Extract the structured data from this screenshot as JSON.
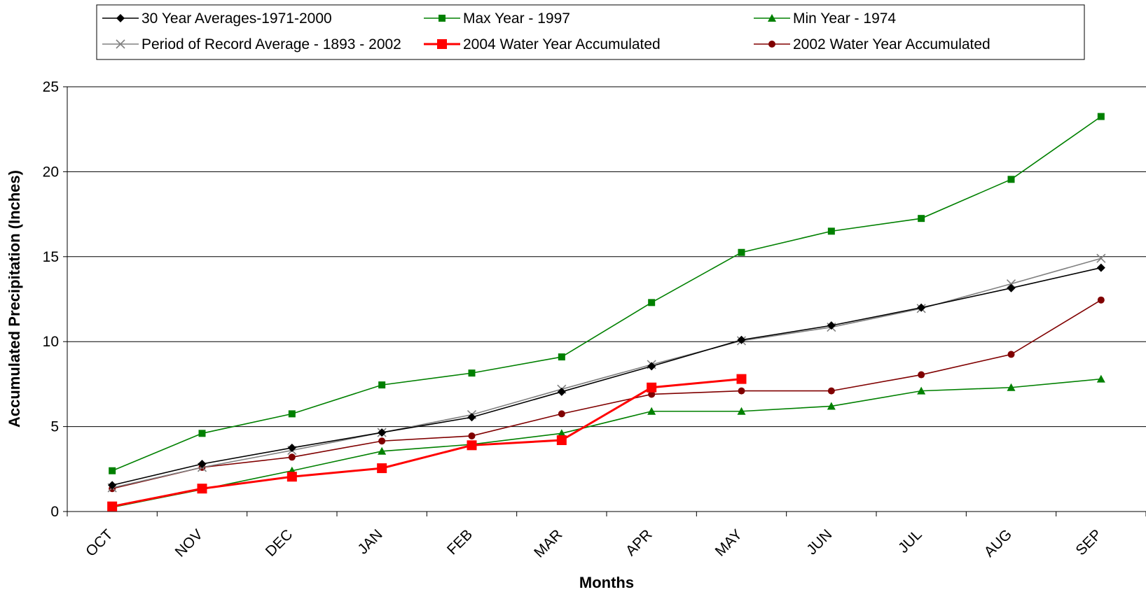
{
  "chart_data": {
    "type": "line",
    "title": "",
    "xlabel": "Months",
    "ylabel": "Accumulated Precipitation (Inches)",
    "ylim": [
      0,
      25
    ],
    "yticks": [
      0,
      5,
      10,
      15,
      20,
      25
    ],
    "grid": "horizontal",
    "legend_position": "top",
    "categories": [
      "OCT",
      "NOV",
      "DEC",
      "JAN",
      "FEB",
      "MAR",
      "APR",
      "MAY",
      "JUN",
      "JUL",
      "AUG",
      "SEP"
    ],
    "series": [
      {
        "name": "30 Year Averages-1971-2000",
        "color": "#000000",
        "marker": "diamond",
        "values": [
          1.55,
          2.8,
          3.75,
          4.65,
          5.55,
          7.05,
          8.55,
          10.1,
          10.95,
          12.0,
          13.15,
          14.35
        ]
      },
      {
        "name": "Max Year - 1997",
        "color": "#008000",
        "marker": "square",
        "values": [
          2.4,
          4.6,
          5.75,
          7.45,
          8.15,
          9.1,
          12.3,
          15.25,
          16.5,
          17.25,
          19.55,
          23.25
        ]
      },
      {
        "name": "Min Year - 1974",
        "color": "#008000",
        "marker": "triangle",
        "values": [
          0.25,
          1.3,
          2.4,
          3.55,
          3.95,
          4.6,
          5.9,
          5.9,
          6.2,
          7.1,
          7.3,
          7.8
        ]
      },
      {
        "name": "Period of Record Average - 1893 - 2002",
        "color": "#808080",
        "marker": "x",
        "values": [
          1.4,
          2.6,
          3.6,
          4.65,
          5.7,
          7.2,
          8.65,
          10.05,
          10.85,
          11.95,
          13.4,
          14.9
        ]
      },
      {
        "name": "2004 Water Year Accumulated",
        "color": "#ff0000",
        "marker": "square-big",
        "values": [
          0.3,
          1.35,
          2.05,
          2.55,
          3.9,
          4.2,
          7.3,
          7.8,
          null,
          null,
          null,
          null
        ]
      },
      {
        "name": "2002 Water Year Accumulated",
        "color": "#800000",
        "marker": "circle",
        "values": [
          1.35,
          2.6,
          3.2,
          4.15,
          4.45,
          5.75,
          6.9,
          7.1,
          7.1,
          8.05,
          9.25,
          12.45
        ]
      }
    ]
  }
}
